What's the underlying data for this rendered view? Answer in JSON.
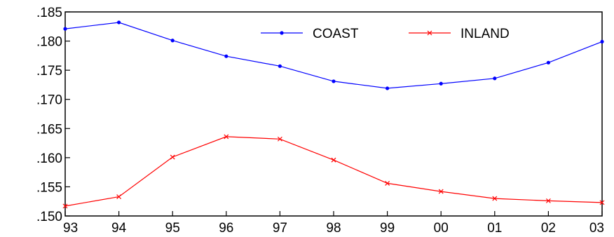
{
  "chart_data": {
    "type": "line",
    "title": "",
    "xlabel": "",
    "ylabel": "",
    "categories": [
      "93",
      "94",
      "95",
      "96",
      "97",
      "98",
      "99",
      "00",
      "01",
      "02",
      "03"
    ],
    "ylim": [
      0.15,
      0.185
    ],
    "yticks": [
      0.15,
      0.155,
      0.16,
      0.165,
      0.17,
      0.175,
      0.18,
      0.185
    ],
    "ytick_labels": [
      ".150",
      ".155",
      ".160",
      ".165",
      ".170",
      ".175",
      ".180",
      ".185"
    ],
    "grid": false,
    "legend_position": "top-right",
    "series": [
      {
        "name": "COAST",
        "color": "#0000ff",
        "marker": "dot",
        "values": [
          0.1821,
          0.1832,
          0.1801,
          0.1774,
          0.1757,
          0.1731,
          0.1719,
          0.1727,
          0.1736,
          0.1763,
          0.1799
        ]
      },
      {
        "name": "INLAND",
        "color": "#ff0000",
        "marker": "x",
        "values": [
          0.1517,
          0.1533,
          0.1601,
          0.1636,
          0.1632,
          0.1596,
          0.1556,
          0.1542,
          0.153,
          0.1526,
          0.1523
        ]
      }
    ]
  }
}
